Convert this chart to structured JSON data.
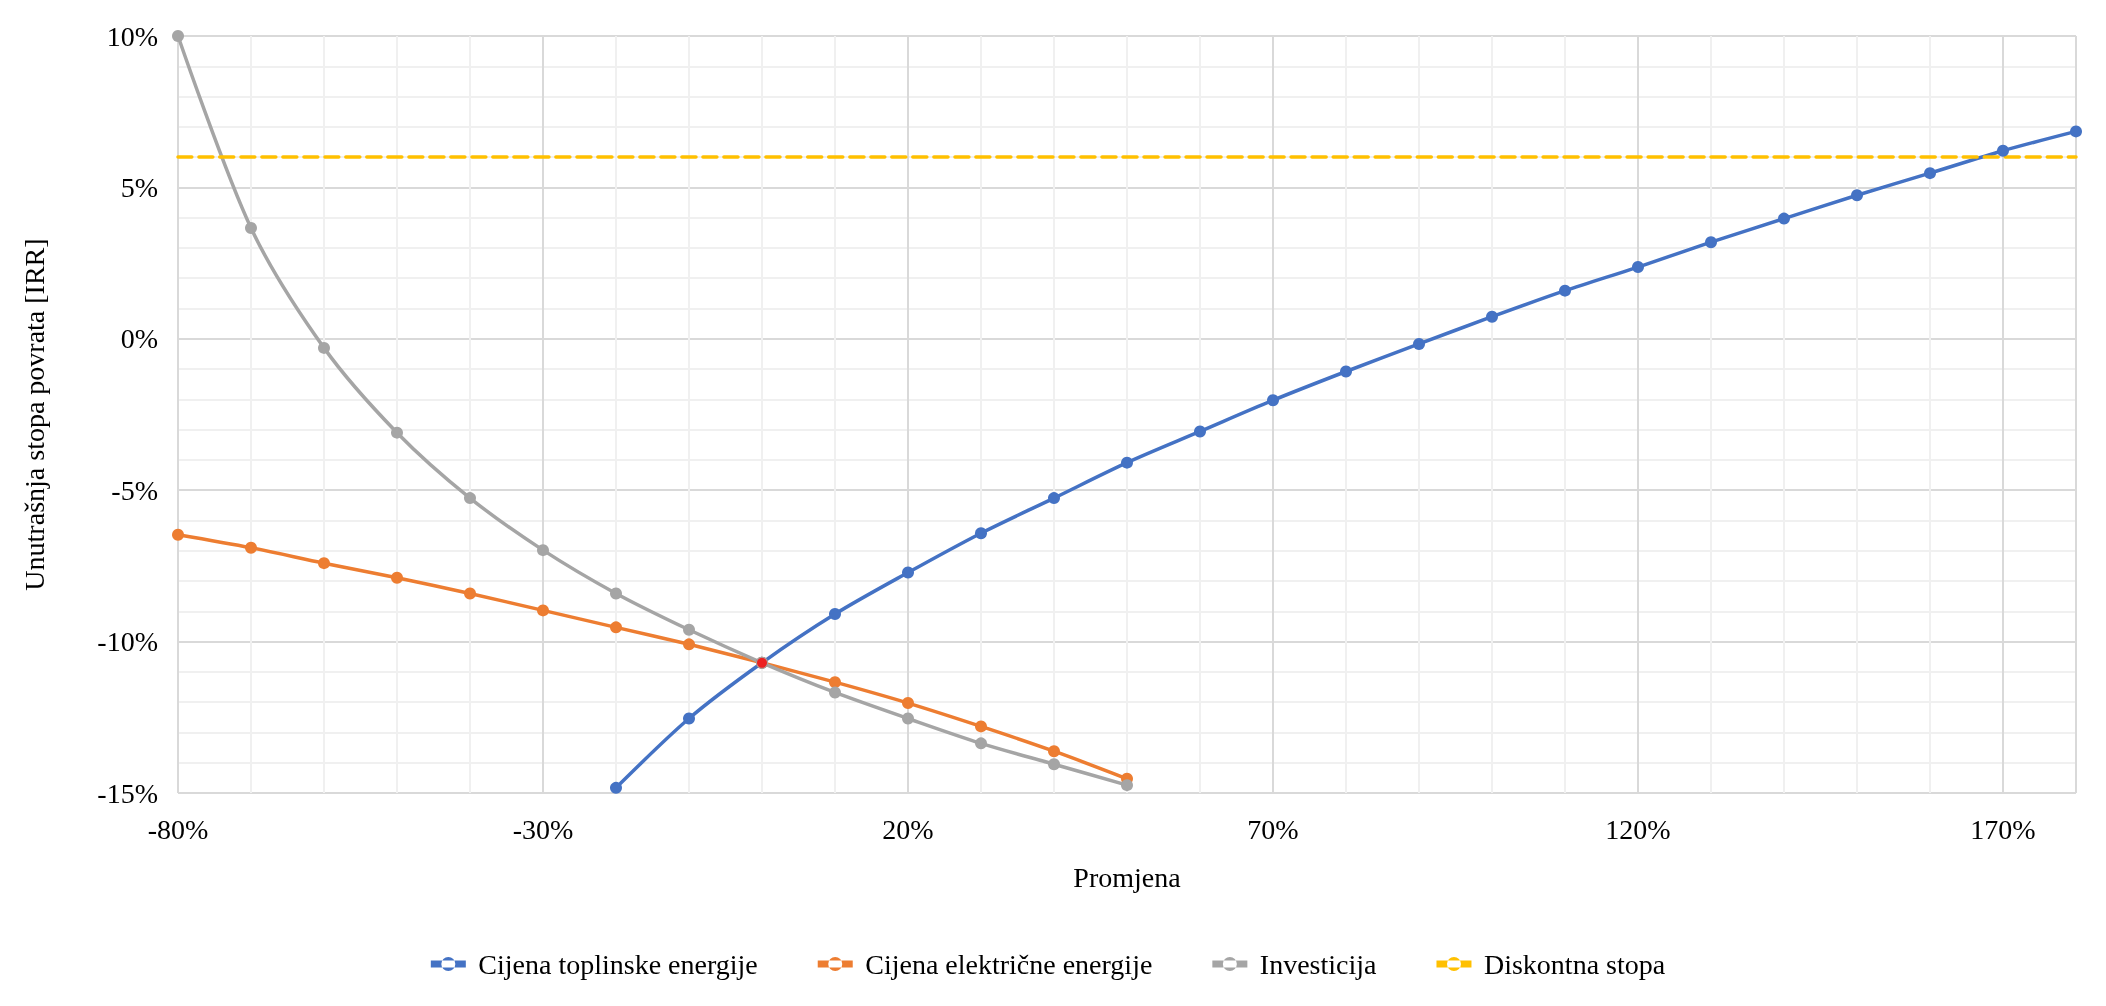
{
  "chart_data": {
    "type": "line",
    "xlabel": "Promjena",
    "ylabel": "Unutrašnja stopa povrata [IRR]",
    "x": [
      -80,
      -70,
      -60,
      -50,
      -40,
      -30,
      -20,
      -10,
      0,
      10,
      20,
      30,
      40,
      50,
      60,
      70,
      80,
      90,
      100,
      110,
      120,
      130,
      140,
      150,
      160,
      170,
      180
    ],
    "xlim": [
      -80,
      180
    ],
    "xticks": [
      {
        "value": -80,
        "label": "-80%"
      },
      {
        "value": -30,
        "label": "-30%"
      },
      {
        "value": 20,
        "label": "20%"
      },
      {
        "value": 70,
        "label": "70%"
      },
      {
        "value": 120,
        "label": "120%"
      },
      {
        "value": 170,
        "label": "170%"
      }
    ],
    "ylim": [
      -15,
      10
    ],
    "yticks": [
      {
        "value": -15,
        "label": "-15%"
      },
      {
        "value": -10,
        "label": "-10%"
      },
      {
        "value": -5,
        "label": "-5%"
      },
      {
        "value": 0,
        "label": "0%"
      },
      {
        "value": 5,
        "label": "5%"
      },
      {
        "value": 10,
        "label": "10%"
      }
    ],
    "grid": true,
    "legend": "bottom",
    "marker": "circle",
    "line_style": "solid",
    "series": [
      {
        "name": "Cijena toplinske energije",
        "color": "#4472c4",
        "values": [
          null,
          null,
          null,
          null,
          null,
          null,
          -14.83,
          -12.54,
          -10.7,
          -9.09,
          -7.72,
          -6.42,
          -5.26,
          -4.09,
          -3.06,
          -2.03,
          -1.08,
          -0.17,
          0.73,
          1.59,
          2.37,
          3.19,
          3.97,
          4.74,
          5.47,
          6.21,
          6.85
        ]
      },
      {
        "name": "Cijena električne energije",
        "color": "#ed7d31",
        "values": [
          -6.47,
          -6.9,
          -7.41,
          -7.89,
          -8.41,
          -8.97,
          -9.53,
          -10.09,
          -10.7,
          -11.34,
          -12.03,
          -12.8,
          -13.62,
          -14.53,
          null,
          null,
          null,
          null,
          null,
          null,
          null,
          null,
          null,
          null,
          null,
          null,
          null
        ]
      },
      {
        "name": "Investicija",
        "color": "#a5a5a5",
        "values": [
          10.0,
          3.66,
          -0.3,
          -3.1,
          -5.26,
          -6.98,
          -8.41,
          -9.61,
          -10.7,
          -11.68,
          -12.54,
          -13.36,
          -14.05,
          -14.74,
          null,
          null,
          null,
          null,
          null,
          null,
          null,
          null,
          null,
          null,
          null,
          null,
          null
        ]
      },
      {
        "name": "Diskontna stopa",
        "color": "#ffc000",
        "x": [
          -80,
          180
        ],
        "values": [
          6,
          6
        ],
        "marker": "none",
        "line_style": "dashed"
      },
      {
        "type": "scatter",
        "color": "#ff0000",
        "x": [
          0
        ],
        "values": [
          -10.7
        ]
      }
    ]
  }
}
